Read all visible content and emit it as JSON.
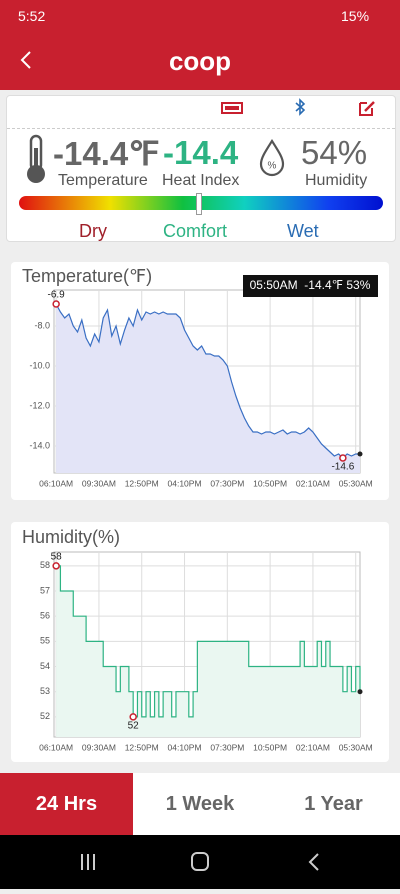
{
  "status_bar": {
    "time": "5:52",
    "battery": "15%"
  },
  "header": {
    "title": "coop"
  },
  "summary": {
    "temperature": "-14.4℉",
    "temperature_label": "Temperature",
    "heat_index": "-14.4",
    "heat_index_label": "Heat Index",
    "humidity": "54%",
    "humidity_label": "Humidity",
    "scale_labels": [
      "Dry",
      "Comfort",
      "Wet"
    ]
  },
  "chart_data": [
    {
      "type": "line",
      "title": "Temperature(℉)",
      "tooltip": "05:50AM  -14.4℉ 53%",
      "fill": true,
      "step": false,
      "color": "#3a6fc4",
      "fill_color": "#e3e4f7",
      "grid": true,
      "x": [
        0,
        20,
        40,
        60,
        80,
        100,
        120,
        140,
        160,
        180,
        200,
        220,
        240,
        260,
        280,
        300,
        320,
        340,
        360,
        380,
        400,
        420,
        440,
        460,
        480,
        500,
        520,
        540,
        560,
        580,
        600,
        620,
        640,
        660,
        680,
        700,
        720,
        740,
        760,
        780,
        800,
        820,
        840,
        860,
        880,
        900,
        920,
        940,
        960,
        980,
        1000,
        1020,
        1040,
        1060,
        1080,
        1100,
        1120,
        1140,
        1160,
        1180,
        1200,
        1220,
        1240,
        1260,
        1280,
        1300,
        1320,
        1340,
        1360,
        1380,
        1400,
        1420
      ],
      "xlim": [
        -10,
        1420
      ],
      "xticks": [
        {
          "value": 0,
          "label": "06:10AM"
        },
        {
          "value": 200,
          "label": "09:30AM"
        },
        {
          "value": 400,
          "label": "12:50PM"
        },
        {
          "value": 600,
          "label": "04:10PM"
        },
        {
          "value": 800,
          "label": "07:30PM"
        },
        {
          "value": 1000,
          "label": "10:50PM"
        },
        {
          "value": 1200,
          "label": "02:10AM"
        },
        {
          "value": 1400,
          "label": "05:30AM"
        }
      ],
      "ylim": [
        -15.35,
        -6.2
      ],
      "yticks": [
        {
          "value": -8,
          "label": "-8.0"
        },
        {
          "value": -10,
          "label": "-10.0"
        },
        {
          "value": -12,
          "label": "-12.0"
        },
        {
          "value": -14,
          "label": "-14.0"
        }
      ],
      "series": [
        {
          "color": "#3a6fc4",
          "values": [
            -6.9,
            -7.3,
            -7.6,
            -7.4,
            -8.0,
            -8.3,
            -7.7,
            -8.6,
            -9.0,
            -8.4,
            -8.8,
            -7.6,
            -7.2,
            -8.5,
            -8.0,
            -8.9,
            -8.2,
            -7.6,
            -8.0,
            -7.2,
            -7.7,
            -7.3,
            -7.4,
            -7.3,
            -7.4,
            -7.3,
            -7.4,
            -7.4,
            -7.4,
            -7.6,
            -8.2,
            -8.6,
            -9.0,
            -9.2,
            -9.0,
            -9.4,
            -9.4,
            -9.5,
            -9.5,
            -9.7,
            -10.0,
            -10.8,
            -11.5,
            -12.1,
            -12.6,
            -13.0,
            -13.3,
            -13.3,
            -13.4,
            -13.3,
            -13.3,
            -13.4,
            -13.3,
            -13.2,
            -13.4,
            -13.3,
            -13.3,
            -13.4,
            -13.3,
            -13.1,
            -13.3,
            -13.6,
            -13.9,
            -14.1,
            -14.3,
            -14.5,
            -14.4,
            -14.6,
            -14.4,
            -14.5,
            -14.4,
            -14.4
          ]
        }
      ],
      "markers": [
        {
          "x": 0,
          "y": -6.9
        },
        {
          "x": 1340,
          "y": -14.6
        }
      ]
    },
    {
      "type": "line",
      "title": "Humidity(%)",
      "fill": true,
      "step": true,
      "color": "#2db383",
      "fill_color": "#eaf7f1",
      "grid": true,
      "x": [
        0,
        20,
        40,
        60,
        80,
        100,
        120,
        140,
        160,
        180,
        200,
        220,
        240,
        260,
        280,
        300,
        320,
        340,
        360,
        380,
        400,
        420,
        440,
        460,
        480,
        500,
        520,
        540,
        560,
        580,
        600,
        620,
        640,
        660,
        680,
        700,
        720,
        740,
        760,
        780,
        800,
        820,
        840,
        860,
        880,
        900,
        920,
        940,
        960,
        980,
        1000,
        1020,
        1040,
        1060,
        1080,
        1100,
        1120,
        1140,
        1160,
        1180,
        1200,
        1220,
        1240,
        1260,
        1280,
        1300,
        1320,
        1340,
        1360,
        1380,
        1400,
        1420
      ],
      "xlim": [
        -10,
        1420
      ],
      "xticks": [
        {
          "value": 0,
          "label": "06:10AM"
        },
        {
          "value": 200,
          "label": "09:30AM"
        },
        {
          "value": 400,
          "label": "12:50PM"
        },
        {
          "value": 600,
          "label": "04:10PM"
        },
        {
          "value": 800,
          "label": "07:30PM"
        },
        {
          "value": 1000,
          "label": "10:50PM"
        },
        {
          "value": 1200,
          "label": "02:10AM"
        },
        {
          "value": 1400,
          "label": "05:30AM"
        }
      ],
      "ylim": [
        51.2,
        58.55
      ],
      "yticks": [
        52,
        53,
        54,
        55,
        56,
        57,
        58
      ],
      "series": [
        {
          "color": "#2db383",
          "values": [
            58,
            57,
            57,
            57,
            56,
            56,
            56,
            55,
            55,
            55,
            55,
            54,
            54,
            54,
            53,
            54,
            54,
            53,
            52,
            53,
            52,
            53,
            52,
            53,
            52,
            53,
            53,
            52,
            53,
            53,
            53,
            52,
            53,
            55,
            55,
            55,
            55,
            55,
            55,
            55,
            55,
            55,
            55,
            55,
            55,
            54,
            54,
            54,
            54,
            54,
            54,
            54,
            54,
            54,
            54,
            54,
            54,
            55,
            54,
            54,
            54,
            55,
            54,
            55,
            54,
            54,
            54,
            53,
            54,
            53,
            54,
            53
          ]
        }
      ],
      "markers": [
        {
          "x": 0,
          "y": 58
        },
        {
          "x": 360,
          "y": 52
        }
      ]
    }
  ],
  "tabs": [
    "24 Hrs",
    "1 Week",
    "1 Year"
  ]
}
